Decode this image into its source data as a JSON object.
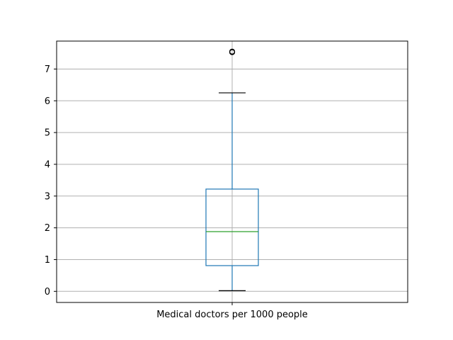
{
  "chart_data": {
    "type": "box",
    "title": "",
    "xlabel": "",
    "ylabel": "",
    "categories": [
      "Medical doctors per 1000 people"
    ],
    "boxes": [
      {
        "name": "Medical doctors per 1000 people",
        "whisker_low": 0.02,
        "q1": 0.81,
        "median": 1.88,
        "q3": 3.22,
        "whisker_high": 6.25,
        "outliers": [
          7.53,
          7.55
        ]
      }
    ],
    "ylim": [
      -0.35,
      7.88
    ],
    "yticks": [
      0,
      1,
      2,
      3,
      4,
      5,
      6,
      7
    ],
    "grid": true,
    "colors": {
      "box": "#1f77b4",
      "median": "#2ca02c",
      "whisker": "#1f77b4",
      "cap": "#000000",
      "grid": "#b0b0b0",
      "axes": "#000000"
    }
  }
}
